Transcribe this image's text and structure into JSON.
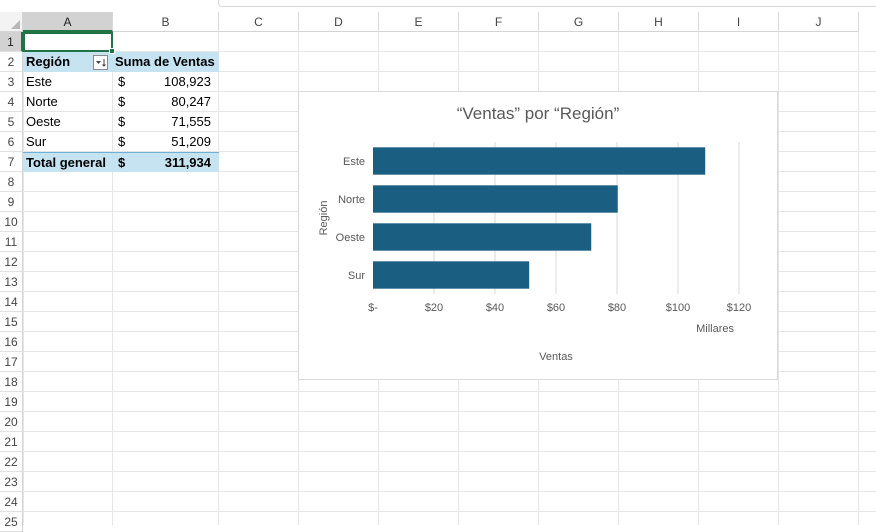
{
  "columns": [
    "A",
    "B",
    "C",
    "D",
    "E",
    "F",
    "G",
    "H",
    "I",
    "J"
  ],
  "rows": [
    "1",
    "2",
    "3",
    "4",
    "5",
    "6",
    "7",
    "8",
    "9",
    "10",
    "11",
    "12",
    "13",
    "14",
    "15",
    "16",
    "17",
    "18",
    "19",
    "20",
    "21",
    "22",
    "23",
    "24",
    "25"
  ],
  "pivot": {
    "header": {
      "region": "Región",
      "sum": "Suma de Ventas"
    },
    "rows": [
      {
        "region": "Este",
        "currency": "$",
        "value": "108,923"
      },
      {
        "region": "Norte",
        "currency": "$",
        "value": "80,247"
      },
      {
        "region": "Oeste",
        "currency": "$",
        "value": "71,555"
      },
      {
        "region": "Sur",
        "currency": "$",
        "value": "51,209"
      }
    ],
    "total": {
      "label": "Total general",
      "currency": "$",
      "value": "311,934"
    }
  },
  "colors": {
    "bar": "#1a5f82",
    "pivot_header": "#c6e3f2",
    "selection": "#217346"
  },
  "chart_data": {
    "type": "bar",
    "orientation": "horizontal",
    "title": "“Ventas” por “Región”",
    "xlabel": "Ventas",
    "ylabel": "Región",
    "display_units": "Millares",
    "categories": [
      "Este",
      "Norte",
      "Oeste",
      "Sur"
    ],
    "values": [
      108.923,
      80.247,
      71.555,
      51.209
    ],
    "xlim": [
      0,
      120
    ],
    "xticks": [
      "$-",
      "$20",
      "$40",
      "$60",
      "$80",
      "$100",
      "$120"
    ],
    "grid": true,
    "legend": "none"
  }
}
